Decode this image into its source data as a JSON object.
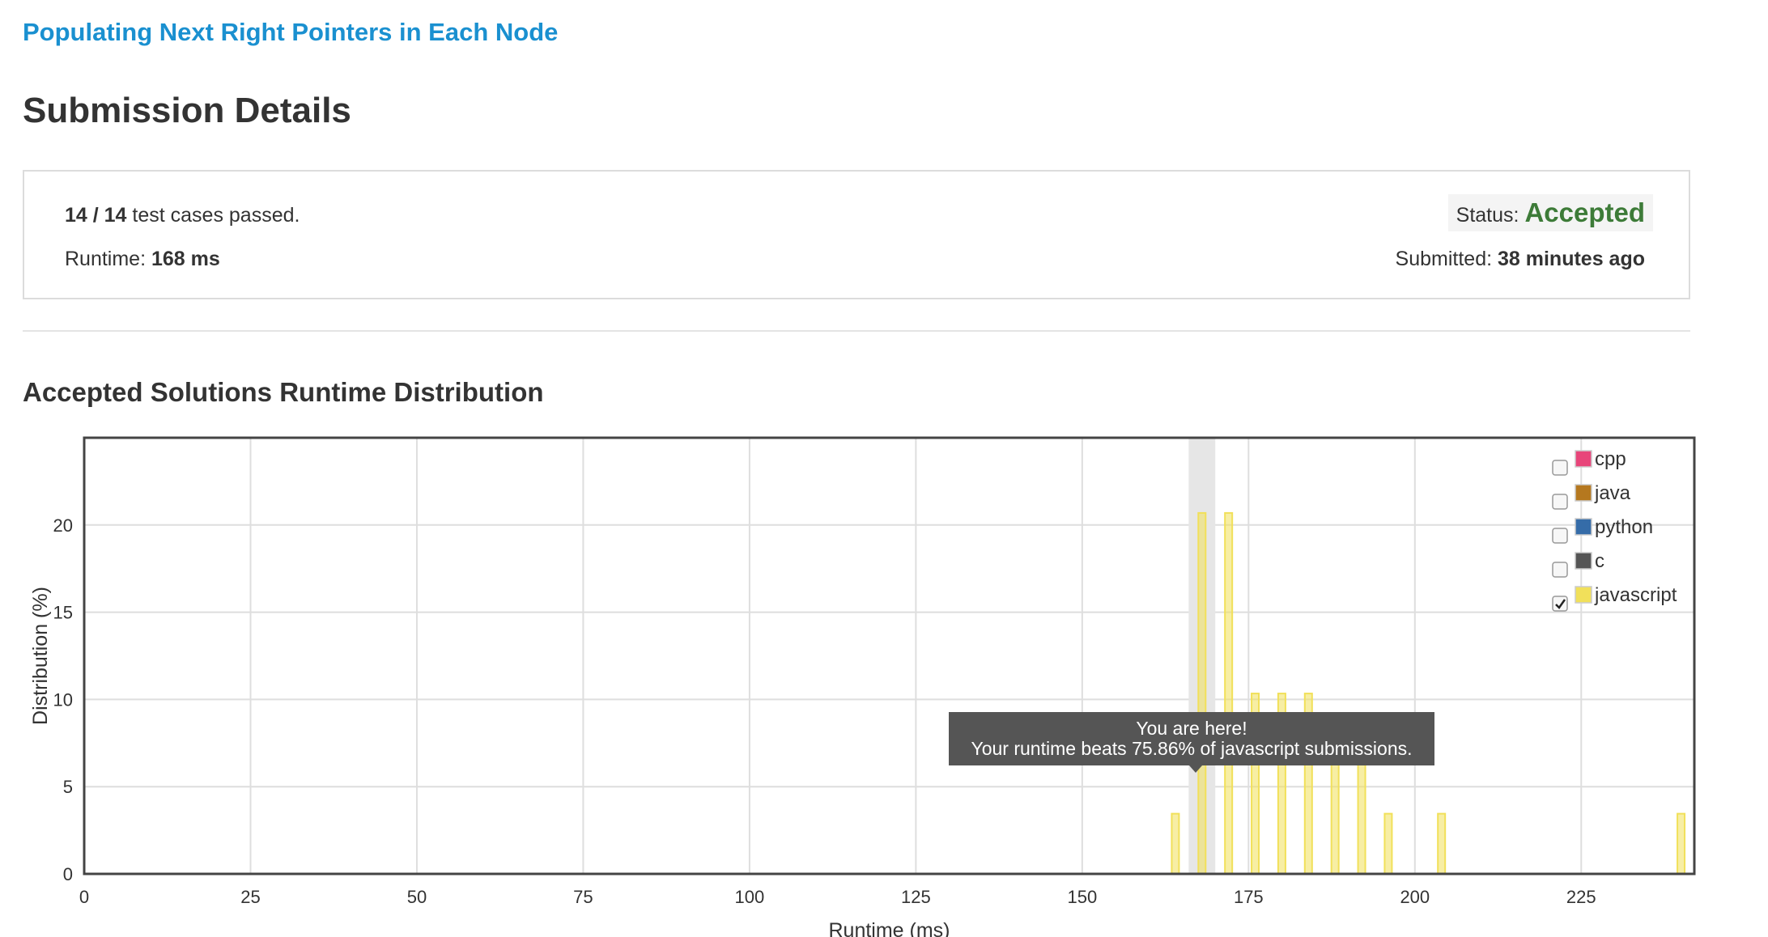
{
  "problem_title": "Populating Next Right Pointers in Each Node",
  "heading": "Submission Details",
  "summary": {
    "passed": "14 / 14",
    "passed_suffix": "test cases passed.",
    "runtime_label": "Runtime:",
    "runtime_value": "168 ms",
    "status_label": "Status:",
    "status_value": "Accepted",
    "submitted_label": "Submitted:",
    "submitted_value": "38 minutes ago"
  },
  "colors": {
    "accepted": "#3d7b38",
    "link": "#1a90d0"
  },
  "tooltip": {
    "line1": "You are here!",
    "line2": "Your runtime beats 75.86% of javascript submissions."
  },
  "chart_data": {
    "type": "bar",
    "title": "Accepted Solutions Runtime Distribution",
    "xlabel": "Runtime (ms)",
    "ylabel": "Distribution (%)",
    "xlim": [
      0,
      242
    ],
    "ylim": [
      0,
      25
    ],
    "x_ticks": [
      0,
      25,
      50,
      75,
      100,
      125,
      150,
      175,
      200,
      225
    ],
    "y_ticks": [
      0,
      5,
      10,
      15,
      20
    ],
    "grid": true,
    "legend_position": "top-right",
    "highlight_x": 168,
    "series": [
      {
        "name": "cpp",
        "color": "#e8457a",
        "checked": false,
        "values": []
      },
      {
        "name": "java",
        "color": "#b5781f",
        "checked": false,
        "values": []
      },
      {
        "name": "python",
        "color": "#356ca8",
        "checked": false,
        "values": []
      },
      {
        "name": "c",
        "color": "#555555",
        "checked": false,
        "values": []
      },
      {
        "name": "javascript",
        "color": "#f1e05a",
        "checked": true,
        "x": [
          164,
          168,
          172,
          176,
          180,
          184,
          188,
          192,
          196,
          204,
          240
        ],
        "values": [
          3.45,
          20.69,
          20.69,
          10.34,
          10.34,
          10.34,
          6.9,
          6.9,
          3.45,
          3.45,
          3.45
        ]
      }
    ]
  }
}
